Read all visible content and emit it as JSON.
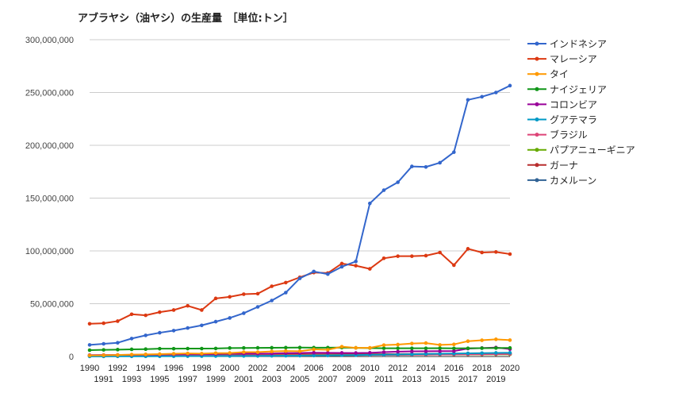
{
  "chart_data": {
    "type": "line",
    "title": "アブラヤシ（油ヤシ）の生産量　［単位:トン］",
    "xlabel": "",
    "ylabel": "",
    "ylim": [
      0,
      300000000
    ],
    "yticks": [
      "0",
      "50,000,000",
      "100,000,000",
      "150,000,000",
      "200,000,000",
      "250,000,000",
      "300,000,000"
    ],
    "x": [
      1990,
      1991,
      1992,
      1993,
      1994,
      1995,
      1996,
      1997,
      1998,
      1999,
      2000,
      2001,
      2002,
      2003,
      2004,
      2005,
      2006,
      2007,
      2008,
      2009,
      2010,
      2011,
      2012,
      2013,
      2014,
      2015,
      2016,
      2017,
      2018,
      2019,
      2020
    ],
    "x_labels_top": [
      "1990",
      "1992",
      "1994",
      "1996",
      "1998",
      "2000",
      "2002",
      "2004",
      "2006",
      "2008",
      "2010",
      "2012",
      "2014",
      "2016",
      "2018",
      "2020"
    ],
    "x_labels_bottom": [
      "1991",
      "1993",
      "1995",
      "1997",
      "1999",
      "2001",
      "2003",
      "2005",
      "2007",
      "2009",
      "2011",
      "2013",
      "2015",
      "2017",
      "2019"
    ],
    "grid": true,
    "legend_position": "right",
    "series": [
      {
        "name": "インドネシア",
        "color": "#3366cc",
        "values": [
          11000000,
          12000000,
          13000000,
          17000000,
          20000000,
          22500000,
          24500000,
          27000000,
          29500000,
          33000000,
          36500000,
          41000000,
          47000000,
          53000000,
          60500000,
          74000000,
          80500000,
          78000000,
          85000000,
          90000000,
          145000000,
          157500000,
          165000000,
          180000000,
          179500000,
          183500000,
          193500000,
          243000000,
          246000000,
          250000000,
          256500000
        ]
      },
      {
        "name": "マレーシア",
        "color": "#dc3912",
        "values": [
          31000000,
          31500000,
          33500000,
          40000000,
          39000000,
          42000000,
          44000000,
          48000000,
          44000000,
          55000000,
          56500000,
          59000000,
          59500000,
          66500000,
          70000000,
          75000000,
          79500000,
          79000000,
          88000000,
          86000000,
          83000000,
          93000000,
          95000000,
          95000000,
          95500000,
          98500000,
          86500000,
          102000000,
          98500000,
          99000000,
          97000000
        ]
      },
      {
        "name": "タイ",
        "color": "#ff9900",
        "values": [
          1000000,
          1200000,
          1400000,
          1800000,
          2000000,
          2300000,
          2600000,
          2900000,
          2700000,
          3200000,
          3300000,
          4100000,
          4100000,
          4800000,
          5200000,
          5000000,
          6800000,
          6400000,
          9300000,
          8200000,
          8200000,
          10800000,
          11300000,
          12300000,
          12700000,
          11000000,
          11500000,
          14500000,
          15400000,
          16300000,
          15500000
        ]
      },
      {
        "name": "ナイジェリア",
        "color": "#109618",
        "values": [
          6000000,
          6300000,
          6500000,
          6800000,
          7000000,
          7400000,
          7400000,
          7500000,
          7500000,
          7600000,
          8000000,
          8100000,
          8200000,
          8300000,
          8400000,
          8500000,
          8400000,
          8400000,
          8500000,
          8200000,
          8000000,
          7800000,
          7800000,
          7800000,
          7800000,
          7900000,
          7700000,
          7800000,
          7900000,
          8000000,
          8100000
        ]
      },
      {
        "name": "コロンビア",
        "color": "#990099",
        "values": [
          1300000,
          1400000,
          1500000,
          1600000,
          1800000,
          1900000,
          2100000,
          2200000,
          2200000,
          2400000,
          2600000,
          2700000,
          2700000,
          2800000,
          3200000,
          3300000,
          3600000,
          3500000,
          3400000,
          3300000,
          3500000,
          4100000,
          4600000,
          4900000,
          5000000,
          5100000,
          5200000,
          7500000,
          8000000,
          8500000,
          7000000
        ]
      },
      {
        "name": "グアテマラ",
        "color": "#0099c6",
        "values": [
          100000,
          120000,
          150000,
          180000,
          200000,
          250000,
          300000,
          350000,
          400000,
          450000,
          500000,
          550000,
          600000,
          700000,
          750000,
          800000,
          900000,
          1000000,
          1200000,
          1300000,
          1600000,
          1800000,
          2000000,
          2200000,
          2400000,
          2600000,
          2800000,
          3000000,
          3200000,
          3400000,
          3500000
        ]
      },
      {
        "name": "ブラジル",
        "color": "#dd4477",
        "values": [
          500000,
          520000,
          550000,
          580000,
          600000,
          650000,
          700000,
          750000,
          800000,
          850000,
          900000,
          950000,
          1000000,
          1050000,
          1100000,
          1150000,
          1200000,
          1250000,
          1300000,
          1350000,
          1400000,
          1500000,
          1600000,
          1700000,
          1800000,
          1900000,
          2000000,
          2100000,
          2200000,
          2300000,
          2400000
        ]
      },
      {
        "name": "パプアニューギニア",
        "color": "#66aa00",
        "values": [
          700000,
          720000,
          750000,
          780000,
          800000,
          850000,
          900000,
          950000,
          1000000,
          1050000,
          1100000,
          1150000,
          1200000,
          1250000,
          1300000,
          1350000,
          1400000,
          1450000,
          1500000,
          1550000,
          1600000,
          1650000,
          1700000,
          1750000,
          1800000,
          1850000,
          1900000,
          1950000,
          2000000,
          2050000,
          2100000
        ]
      },
      {
        "name": "ガーナ",
        "color": "#b82e2e",
        "values": [
          1100000,
          1200000,
          1250000,
          1300000,
          1400000,
          1500000,
          1550000,
          1600000,
          1650000,
          1700000,
          1750000,
          1800000,
          1850000,
          1900000,
          1950000,
          2000000,
          2000000,
          2050000,
          2100000,
          2150000,
          2200000,
          2250000,
          2300000,
          2350000,
          2400000,
          2450000,
          2500000,
          2550000,
          2600000,
          2650000,
          2700000
        ]
      },
      {
        "name": "カメルーン",
        "color": "#316395",
        "values": [
          900000,
          950000,
          1000000,
          1050000,
          1100000,
          1150000,
          1200000,
          1250000,
          1300000,
          1350000,
          1400000,
          1450000,
          1500000,
          1550000,
          1600000,
          1650000,
          1700000,
          1750000,
          1800000,
          1850000,
          1900000,
          1950000,
          2000000,
          2050000,
          2100000,
          2150000,
          2200000,
          2250000,
          2300000,
          2350000,
          2400000
        ]
      }
    ]
  }
}
